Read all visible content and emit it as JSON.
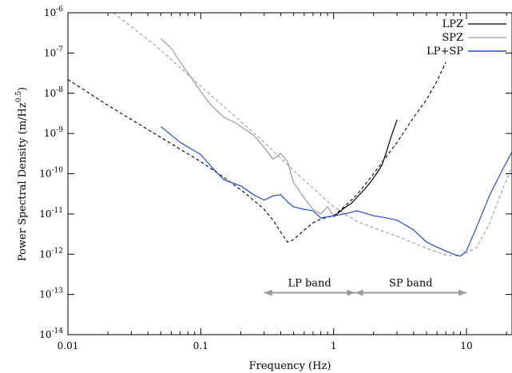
{
  "chart_data": {
    "type": "line",
    "xlabel": "Frequency (Hz)",
    "ylabel_main": "Power Spectral Density (m/Hz",
    "ylabel_exp": "0.5",
    "ylabel_close": ")",
    "xscale": "log",
    "yscale": "log",
    "xlim": [
      0.01,
      22
    ],
    "ylim": [
      1e-14,
      1e-06
    ],
    "x_ticks": [
      {
        "value": 0.01,
        "label": "0.01"
      },
      {
        "value": 0.1,
        "label": "0.1"
      },
      {
        "value": 1,
        "label": "1"
      },
      {
        "value": 10,
        "label": "10"
      }
    ],
    "y_ticks": [
      {
        "value": 1e-14,
        "mant": "10",
        "exp": "-14"
      },
      {
        "value": 1e-13,
        "mant": "10",
        "exp": "-13"
      },
      {
        "value": 1e-12,
        "mant": "10",
        "exp": "-12"
      },
      {
        "value": 1e-11,
        "mant": "10",
        "exp": "-11"
      },
      {
        "value": 1e-10,
        "mant": "10",
        "exp": "-10"
      },
      {
        "value": 1e-09,
        "mant": "10",
        "exp": "-9"
      },
      {
        "value": 1e-08,
        "mant": "10",
        "exp": "-8"
      },
      {
        "value": 1e-07,
        "mant": "10",
        "exp": "-7"
      },
      {
        "value": 1e-06,
        "mant": "10",
        "exp": "-6"
      }
    ],
    "legend_position": "top-right",
    "series": [
      {
        "name": "LPZ",
        "color": "#000000",
        "x": [
          1.0,
          1.1,
          1.2,
          1.35,
          1.5,
          1.7,
          1.9,
          2.1,
          2.3,
          2.5,
          2.7,
          3.0
        ],
        "y": [
          8.5e-12,
          1.1e-11,
          1.4e-11,
          1.8e-11,
          2.6e-11,
          4e-11,
          6.3e-11,
          1e-10,
          1.6e-10,
          3.5e-10,
          8e-10,
          2.2e-09
        ]
      },
      {
        "name": "SPZ",
        "color": "#9a9a9a",
        "x": [
          0.05,
          0.06,
          0.07,
          0.08,
          0.1,
          0.12,
          0.15,
          0.18,
          0.2,
          0.25,
          0.3,
          0.35,
          0.4,
          0.45,
          0.5,
          0.6,
          0.7,
          0.8,
          0.9,
          1.0
        ],
        "y": [
          2.3e-07,
          1.3e-07,
          6e-08,
          3.2e-08,
          1.1e-08,
          5e-09,
          2.5e-09,
          1.9e-09,
          1.5e-09,
          9e-10,
          4.5e-10,
          2.3e-10,
          3.2e-10,
          2e-10,
          6e-11,
          2.5e-11,
          1.3e-11,
          1e-11,
          1.5e-11,
          9e-12
        ]
      },
      {
        "name": "LP+SP",
        "color": "#1f4fd8",
        "x": [
          0.05,
          0.07,
          0.1,
          0.12,
          0.15,
          0.2,
          0.25,
          0.3,
          0.35,
          0.4,
          0.45,
          0.5,
          0.6,
          0.7,
          0.8,
          1.0,
          1.2,
          1.5,
          2.0,
          2.5,
          3.0,
          4.0,
          5.0,
          6.0,
          7.0,
          8.0,
          9.0,
          10.0,
          12.0,
          15.0,
          18.0,
          22.0
        ],
        "y": [
          1.5e-09,
          6e-10,
          3e-10,
          1.5e-10,
          7e-11,
          5e-11,
          3e-11,
          2.2e-11,
          2.8e-11,
          3e-11,
          2e-11,
          1.5e-11,
          1.3e-11,
          1.2e-11,
          8e-12,
          9e-12,
          1e-11,
          1.2e-11,
          9e-12,
          8e-12,
          7e-12,
          4e-12,
          2e-12,
          1.5e-12,
          1.2e-12,
          1e-12,
          9e-13,
          1.2e-12,
          5e-12,
          3e-11,
          1e-10,
          3.5e-10
        ]
      }
    ],
    "model_curves": [
      {
        "color": "#000000",
        "dash": "4,3",
        "x": [
          0.01,
          0.02,
          0.05,
          0.1,
          0.15,
          0.2,
          0.25,
          0.3,
          0.35,
          0.4,
          0.45,
          0.5,
          0.6,
          0.7,
          0.8,
          1.0,
          1.2,
          1.5,
          2.0,
          3.0,
          4.0,
          5.0,
          6.0,
          7.0
        ],
        "y": [
          2.2e-08,
          5e-09,
          8e-10,
          2e-10,
          8e-11,
          4e-11,
          2.2e-11,
          1.3e-11,
          7e-12,
          3.5e-12,
          2e-12,
          2.3e-12,
          4e-12,
          6e-12,
          7.5e-12,
          9e-12,
          1.5e-11,
          3e-11,
          1e-10,
          6e-10,
          2.5e-09,
          7e-09,
          2e-08,
          6e-08
        ]
      },
      {
        "color": "#9a9a9a",
        "dash": "4,3",
        "x": [
          0.022,
          0.03,
          0.05,
          0.1,
          0.2,
          0.3,
          0.5,
          1.0,
          1.5,
          2.0,
          3.0,
          5.0,
          7.0,
          9.0,
          12.0,
          15.0,
          18.0,
          22.0
        ],
        "y": [
          1e-06,
          4.5e-07,
          1.2e-07,
          1.5e-08,
          2e-09,
          6e-10,
          1.2e-10,
          1.5e-11,
          6.5e-12,
          4.5e-12,
          2.8e-12,
          1.4e-12,
          9.5e-13,
          9e-13,
          1.5e-12,
          6e-12,
          3e-11,
          1.5e-10
        ]
      }
    ],
    "annotations": [
      {
        "label": "LP band",
        "from": 0.3,
        "to": 1.45,
        "y": 1.1e-13
      },
      {
        "label": "SP band",
        "from": 1.45,
        "to": 10.0,
        "y": 1.1e-13
      }
    ],
    "grid": false
  }
}
